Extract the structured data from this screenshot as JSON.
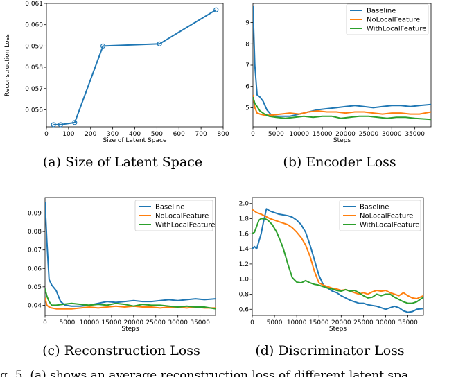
{
  "colors": {
    "baseline": "#1f77b4",
    "nolocal": "#ff7f0e",
    "withlocal": "#2ca02c",
    "axis": "#000000"
  },
  "captions": [
    "(a) Size of Latent Space",
    "(b) Encoder Loss",
    "(c) Reconstruction Loss",
    "(d) Discriminator Loss"
  ],
  "fig_text": "g. 5.   (a) shows an average reconstruction loss of different latent spa",
  "chart_data": [
    {
      "type": "line",
      "xlabel": "Size of Latent Space",
      "ylabel": "Reconstruction Loss",
      "xlim": [
        0,
        800
      ],
      "ylim": [
        0.0552,
        0.061
      ],
      "xticks": [
        0,
        100,
        200,
        300,
        400,
        500,
        600,
        700,
        800
      ],
      "yticks": [
        0.056,
        0.057,
        0.058,
        0.059,
        0.06,
        0.061
      ],
      "markers": true,
      "series": [
        {
          "color": "#1f77b4",
          "x": [
            32,
            64,
            128,
            256,
            512,
            768
          ],
          "y": [
            0.0553,
            0.0553,
            0.0554,
            0.059,
            0.0591,
            0.0607
          ]
        }
      ]
    },
    {
      "type": "line",
      "xlabel": "Steps",
      "ylabel": "",
      "xlim": [
        0,
        38500
      ],
      "ylim": [
        4.1,
        9.9
      ],
      "xticks": [
        0,
        5000,
        10000,
        15000,
        20000,
        25000,
        30000,
        35000
      ],
      "yticks": [
        5,
        6,
        7,
        8,
        9
      ],
      "legend": "top-right",
      "series": [
        {
          "name": "Baseline",
          "color": "#1f77b4",
          "x": [
            0,
            400,
            900,
            1500,
            2200,
            3000,
            3800,
            4500,
            6000,
            8000,
            10000,
            12000,
            14000,
            16000,
            18000,
            20000,
            22000,
            24000,
            26000,
            28000,
            30000,
            32000,
            34000,
            36000,
            38500
          ],
          "y": [
            9.8,
            7.0,
            5.6,
            5.5,
            5.3,
            4.9,
            4.7,
            4.6,
            4.6,
            4.6,
            4.7,
            4.8,
            4.9,
            4.95,
            5.0,
            5.05,
            5.1,
            5.05,
            5.0,
            5.05,
            5.1,
            5.1,
            5.05,
            5.1,
            5.15
          ]
        },
        {
          "name": "NoLocalFeature",
          "color": "#ff7f0e",
          "x": [
            0,
            400,
            900,
            1500,
            2500,
            4000,
            6000,
            8000,
            10000,
            12000,
            14000,
            16000,
            18000,
            20000,
            22000,
            24000,
            26000,
            28000,
            30000,
            32000,
            34000,
            36000,
            38500
          ],
          "y": [
            5.6,
            5.0,
            4.75,
            4.7,
            4.65,
            4.65,
            4.7,
            4.75,
            4.7,
            4.8,
            4.85,
            4.8,
            4.8,
            4.75,
            4.8,
            4.8,
            4.75,
            4.7,
            4.75,
            4.75,
            4.7,
            4.7,
            4.8
          ]
        },
        {
          "name": "WithLocalFeature",
          "color": "#2ca02c",
          "x": [
            0,
            400,
            900,
            1500,
            2500,
            3500,
            5000,
            7000,
            9000,
            11000,
            13000,
            15000,
            17000,
            19000,
            21000,
            23000,
            25000,
            27000,
            29000,
            31000,
            33000,
            35000,
            38500
          ],
          "y": [
            5.5,
            5.2,
            5.05,
            4.85,
            4.7,
            4.6,
            4.55,
            4.5,
            4.55,
            4.6,
            4.55,
            4.6,
            4.6,
            4.5,
            4.55,
            4.6,
            4.6,
            4.55,
            4.5,
            4.55,
            4.55,
            4.5,
            4.45
          ]
        }
      ]
    },
    {
      "type": "line",
      "xlabel": "Steps",
      "ylabel": "",
      "xlim": [
        0,
        38500
      ],
      "ylim": [
        0.0345,
        0.0985
      ],
      "xticks": [
        0,
        5000,
        10000,
        15000,
        20000,
        25000,
        30000,
        35000
      ],
      "yticks": [
        0.04,
        0.05,
        0.06,
        0.07,
        0.08,
        0.09
      ],
      "legend": "top-right",
      "series": [
        {
          "name": "Baseline",
          "color": "#1f77b4",
          "x": [
            0,
            400,
            900,
            1500,
            2500,
            3500,
            4500,
            6000,
            8000,
            10000,
            12000,
            14000,
            16000,
            18000,
            20000,
            22000,
            24000,
            26000,
            28000,
            30000,
            32000,
            34000,
            36000,
            38500
          ],
          "y": [
            0.096,
            0.075,
            0.054,
            0.051,
            0.048,
            0.042,
            0.04,
            0.0395,
            0.0395,
            0.04,
            0.041,
            0.042,
            0.0415,
            0.042,
            0.0425,
            0.042,
            0.042,
            0.0425,
            0.043,
            0.0425,
            0.043,
            0.0435,
            0.043,
            0.0435
          ]
        },
        {
          "name": "NoLocalFeature",
          "color": "#ff7f0e",
          "x": [
            0,
            400,
            900,
            1500,
            2500,
            4000,
            6000,
            8000,
            10000,
            12000,
            14000,
            16000,
            18000,
            20000,
            22000,
            24000,
            26000,
            28000,
            30000,
            32000,
            34000,
            36000,
            38500
          ],
          "y": [
            0.044,
            0.04,
            0.039,
            0.0385,
            0.038,
            0.038,
            0.038,
            0.0385,
            0.039,
            0.0385,
            0.039,
            0.0395,
            0.039,
            0.0395,
            0.039,
            0.039,
            0.0385,
            0.039,
            0.039,
            0.0385,
            0.039,
            0.0385,
            0.0385
          ]
        },
        {
          "name": "WithLocalFeature",
          "color": "#2ca02c",
          "x": [
            0,
            400,
            900,
            1500,
            2500,
            4000,
            6000,
            8000,
            10000,
            12000,
            14000,
            16000,
            18000,
            20000,
            22000,
            24000,
            26000,
            28000,
            30000,
            32000,
            34000,
            36000,
            38500
          ],
          "y": [
            0.049,
            0.045,
            0.042,
            0.04,
            0.04,
            0.0405,
            0.041,
            0.0405,
            0.04,
            0.0405,
            0.04,
            0.041,
            0.0405,
            0.0395,
            0.0405,
            0.04,
            0.04,
            0.0395,
            0.039,
            0.0395,
            0.039,
            0.039,
            0.038
          ]
        }
      ]
    },
    {
      "type": "line",
      "xlabel": "Steps",
      "ylabel": "",
      "xlim": [
        0,
        38500
      ],
      "ylim": [
        0.52,
        2.08
      ],
      "xticks": [
        0,
        5000,
        10000,
        15000,
        20000,
        25000,
        30000,
        35000
      ],
      "yticks": [
        0.6,
        0.8,
        1.0,
        1.2,
        1.4,
        1.6,
        1.8,
        2.0
      ],
      "legend": "top-right",
      "series": [
        {
          "name": "Baseline",
          "color": "#1f77b4",
          "x": [
            0,
            500,
            1000,
            1500,
            2000,
            2500,
            3200,
            4000,
            5000,
            6000,
            7000,
            8000,
            9000,
            10000,
            11000,
            12000,
            13000,
            14000,
            15000,
            16000,
            17000,
            18000,
            19000,
            20000,
            21000,
            22000,
            23000,
            24000,
            25000,
            26000,
            27000,
            28000,
            29000,
            30000,
            31000,
            32000,
            33000,
            34000,
            35000,
            36000,
            37000,
            38500
          ],
          "y": [
            1.4,
            1.43,
            1.4,
            1.5,
            1.6,
            1.75,
            1.93,
            1.9,
            1.88,
            1.86,
            1.85,
            1.84,
            1.82,
            1.78,
            1.72,
            1.62,
            1.45,
            1.25,
            1.05,
            0.92,
            0.88,
            0.84,
            0.82,
            0.78,
            0.75,
            0.72,
            0.7,
            0.68,
            0.68,
            0.66,
            0.65,
            0.64,
            0.62,
            0.6,
            0.62,
            0.64,
            0.62,
            0.58,
            0.56,
            0.57,
            0.6,
            0.61
          ]
        },
        {
          "name": "NoLocalFeature",
          "color": "#ff7f0e",
          "x": [
            0,
            1000,
            2000,
            3000,
            4000,
            5000,
            6000,
            7000,
            8000,
            9000,
            10000,
            11000,
            12000,
            13000,
            14000,
            15000,
            16000,
            17000,
            18000,
            19000,
            20000,
            21000,
            22000,
            23000,
            24000,
            25000,
            26000,
            27000,
            28000,
            29000,
            30000,
            31000,
            32000,
            33000,
            34000,
            35000,
            36000,
            37000,
            38500
          ],
          "y": [
            1.92,
            1.88,
            1.86,
            1.83,
            1.8,
            1.78,
            1.76,
            1.74,
            1.72,
            1.68,
            1.62,
            1.55,
            1.45,
            1.3,
            1.1,
            0.95,
            0.92,
            0.9,
            0.88,
            0.87,
            0.85,
            0.86,
            0.84,
            0.82,
            0.8,
            0.82,
            0.8,
            0.83,
            0.85,
            0.84,
            0.85,
            0.82,
            0.8,
            0.78,
            0.82,
            0.78,
            0.75,
            0.74,
            0.78
          ]
        },
        {
          "name": "WithLocalFeature",
          "color": "#2ca02c",
          "x": [
            0,
            500,
            1000,
            1500,
            2000,
            2800,
            3500,
            4500,
            5500,
            6500,
            7000,
            8000,
            9000,
            10000,
            11000,
            12000,
            13000,
            14000,
            15000,
            16000,
            17000,
            18000,
            19000,
            20000,
            21000,
            22000,
            23000,
            24000,
            25000,
            26000,
            27000,
            28000,
            29000,
            30000,
            31000,
            32000,
            33000,
            34000,
            35000,
            36000,
            37000,
            38500
          ],
          "y": [
            1.6,
            1.62,
            1.7,
            1.78,
            1.8,
            1.8,
            1.78,
            1.72,
            1.62,
            1.48,
            1.4,
            1.2,
            1.02,
            0.96,
            0.95,
            0.98,
            0.95,
            0.93,
            0.92,
            0.9,
            0.88,
            0.87,
            0.85,
            0.84,
            0.86,
            0.84,
            0.85,
            0.82,
            0.78,
            0.75,
            0.76,
            0.8,
            0.78,
            0.8,
            0.8,
            0.76,
            0.73,
            0.7,
            0.68,
            0.68,
            0.7,
            0.76
          ]
        }
      ]
    }
  ]
}
